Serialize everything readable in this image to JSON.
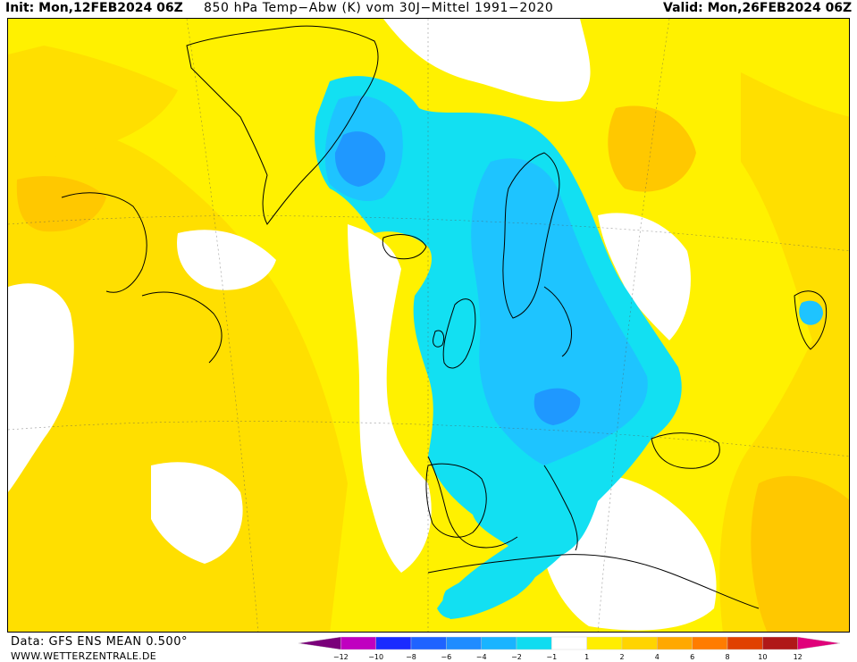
{
  "header": {
    "init": "Init: Mon,12FEB2024 06Z",
    "title": "850 hPa Temp−Abw (K) vom 30J−Mittel 1991−2020",
    "valid": "Valid: Mon,26FEB2024 06Z"
  },
  "footer": {
    "data_source": "Data: GFS ENS MEAN 0.500°",
    "website": "WWW.WETTERZENTRALE.DE"
  },
  "colorbar": {
    "labels": [
      "−12",
      "−10",
      "−8",
      "−6",
      "−4",
      "−2",
      "−1",
      "1",
      "2",
      "4",
      "6",
      "8",
      "10",
      "12"
    ],
    "colors": [
      "#7a007a",
      "#c000c0",
      "#1a2bff",
      "#1f63ff",
      "#1f8cff",
      "#19b4ff",
      "#10dcf0",
      "#ffffff",
      "#ffee00",
      "#ffd400",
      "#ffa800",
      "#ff7c00",
      "#e04000",
      "#b01818",
      "#e0007a"
    ]
  },
  "map": {
    "colors": {
      "warm_weak": "#fff100",
      "warm_mod": "#ffdf00",
      "warm_strong": "#ffc800",
      "neutral": "#ffffff",
      "cold_weak": "#12e0f2",
      "cold_mod": "#1ec4ff",
      "cold_strong": "#1f98ff",
      "coast": "#000000"
    }
  }
}
